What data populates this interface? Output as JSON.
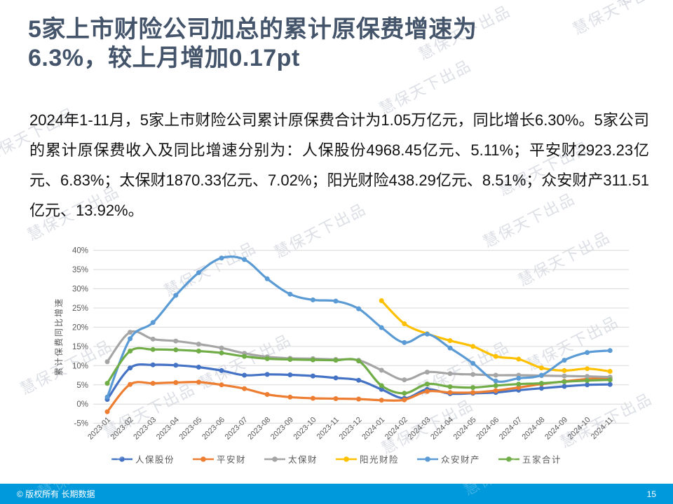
{
  "slide": {
    "title_line1": "5家上市财险公司加总的累计原保费增速为",
    "title_line2": "6.3%，较上月增加0.17pt",
    "body": "2024年1-11月，5家上市财险公司累计原保费合计为1.05万亿元，同比增长6.30%。5家公司的累计原保费收入及同比增速分别为：人保股份4968.45亿元、5.11%；平安财2923.23亿元、6.83%；太保财1870.33亿元、7.02%；阳光财险438.29亿元、8.51%；众安财产311.51亿元、13.92%。",
    "watermark": "慧保天下出品",
    "footer": {
      "copyright": "© 版权所有 长期数据",
      "page_number": "15"
    },
    "colors": {
      "title": "#44546A",
      "footer_bar": "#0099DB",
      "gridline": "#D9D9D9",
      "axis_text": "#595959"
    }
  },
  "chart_data": {
    "type": "line",
    "title": "",
    "xlabel": "",
    "ylabel": "累计保费同比增速",
    "ylim": [
      -5,
      40
    ],
    "ytick_step": 5,
    "ytick_suffix": "%",
    "grid": true,
    "smooth_lines": true,
    "legend_position": "bottom",
    "categories": [
      "2023-01",
      "2023-02",
      "2023-03",
      "2023-04",
      "2023-05",
      "2023-06",
      "2023-07",
      "2023-08",
      "2023-09",
      "2023-10",
      "2023-11",
      "2023-12",
      "2024-01",
      "2024-02",
      "2024-03",
      "2024-04",
      "2024-05",
      "2024-06",
      "2024-07",
      "2024-08",
      "2024-09",
      "2024-10",
      "2024-11"
    ],
    "series": [
      {
        "key": "picc",
        "name": "人保股份",
        "color": "#4472C4",
        "values": [
          1.2,
          9.4,
          10.2,
          10.1,
          9.6,
          8.7,
          7.5,
          7.7,
          7.6,
          7.3,
          6.8,
          6.2,
          3.8,
          1.5,
          3.8,
          2.7,
          2.8,
          3.0,
          3.6,
          4.1,
          4.6,
          5.0,
          5.11
        ]
      },
      {
        "key": "pingan",
        "name": "平安财",
        "color": "#ED7D31",
        "values": [
          -2.0,
          5.1,
          5.4,
          5.6,
          5.7,
          5.0,
          4.0,
          2.5,
          1.8,
          1.5,
          1.4,
          1.3,
          1.0,
          1.1,
          3.3,
          3.0,
          3.0,
          3.5,
          4.3,
          5.2,
          5.9,
          6.5,
          6.83
        ]
      },
      {
        "key": "cpic",
        "name": "太保财",
        "color": "#A5A5A5",
        "values": [
          11.0,
          18.7,
          16.9,
          16.4,
          15.6,
          14.6,
          13.2,
          12.3,
          11.9,
          11.8,
          11.6,
          11.4,
          8.8,
          6.3,
          8.3,
          7.9,
          7.7,
          7.5,
          7.5,
          7.4,
          7.3,
          7.2,
          7.02
        ]
      },
      {
        "key": "sunshine",
        "name": "阳光财险",
        "color": "#FFC000",
        "values": [
          null,
          null,
          null,
          null,
          null,
          null,
          null,
          null,
          null,
          null,
          null,
          null,
          26.9,
          20.9,
          18.3,
          16.5,
          15.0,
          12.4,
          11.7,
          9.4,
          8.7,
          9.2,
          8.51
        ]
      },
      {
        "key": "zhongan",
        "name": "众安财产",
        "color": "#5B9BD5",
        "values": [
          1.8,
          17.0,
          21.2,
          28.3,
          34.2,
          38.0,
          37.6,
          32.6,
          28.6,
          27.1,
          26.8,
          24.8,
          19.9,
          16.0,
          18.2,
          14.6,
          10.6,
          6.0,
          6.7,
          7.5,
          11.4,
          13.4,
          13.92
        ]
      },
      {
        "key": "total",
        "name": "五家合计",
        "color": "#70AD47",
        "values": [
          5.4,
          13.8,
          14.2,
          14.1,
          13.8,
          13.3,
          12.4,
          11.8,
          11.6,
          11.5,
          11.4,
          11.2,
          4.8,
          2.8,
          5.2,
          4.5,
          4.3,
          4.8,
          5.2,
          5.4,
          5.8,
          6.1,
          6.3
        ]
      }
    ]
  }
}
